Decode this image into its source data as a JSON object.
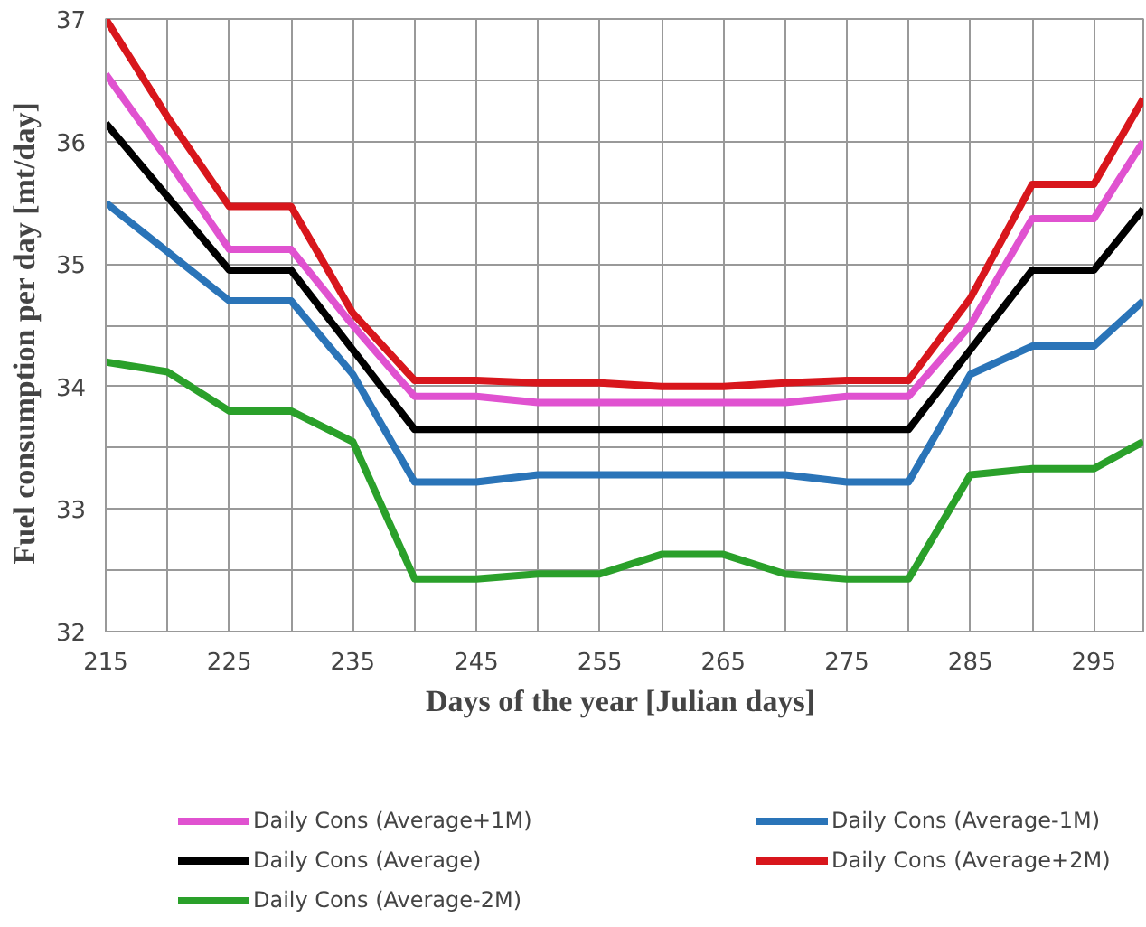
{
  "chart_data": {
    "type": "line",
    "xlabel": "Days of the year [Julian  days]",
    "ylabel": "Fuel consumption  per day  [mt/day]",
    "x": [
      215,
      220,
      225,
      230,
      235,
      240,
      245,
      250,
      255,
      260,
      265,
      270,
      275,
      280,
      285,
      290,
      295,
      299
    ],
    "series": [
      {
        "name": "Daily Cons (Average+1M)",
        "color": "#e052d0",
        "values": [
          36.55,
          35.85,
          35.12,
          35.12,
          34.5,
          33.92,
          33.92,
          33.87,
          33.87,
          33.87,
          33.87,
          33.87,
          33.92,
          33.92,
          34.5,
          35.37,
          35.37,
          36.0
        ]
      },
      {
        "name": "Daily Cons (Average-1M)",
        "color": "#2a74b8",
        "values": [
          35.5,
          35.1,
          34.7,
          34.7,
          34.1,
          33.22,
          33.22,
          33.28,
          33.28,
          33.28,
          33.28,
          33.28,
          33.22,
          33.22,
          34.1,
          34.33,
          34.33,
          34.7
        ]
      },
      {
        "name": "Daily Cons (Average)",
        "color": "#000000",
        "values": [
          36.15,
          35.55,
          34.95,
          34.95,
          34.3,
          33.65,
          33.65,
          33.65,
          33.65,
          33.65,
          33.65,
          33.65,
          33.65,
          33.65,
          34.3,
          34.95,
          34.95,
          35.45
        ]
      },
      {
        "name": "Daily Cons (Average+2M)",
        "color": "#d8161c",
        "values": [
          37.0,
          36.2,
          35.47,
          35.47,
          34.6,
          34.05,
          34.05,
          34.03,
          34.03,
          34.0,
          34.0,
          34.03,
          34.05,
          34.05,
          34.72,
          35.65,
          35.65,
          36.35
        ]
      },
      {
        "name": "Daily Cons (Average-2M)",
        "color": "#2aa02a",
        "values": [
          34.2,
          34.12,
          33.8,
          33.8,
          33.55,
          32.43,
          32.43,
          32.47,
          32.47,
          32.63,
          32.63,
          32.47,
          32.43,
          32.43,
          33.28,
          33.33,
          33.33,
          33.55
        ]
      }
    ],
    "xlim": [
      215,
      299
    ],
    "xticks": [
      215,
      {
        "value": 220,
        "label": null
      },
      225,
      {
        "value": 230,
        "label": null
      },
      235,
      {
        "value": 240,
        "label": null
      },
      245,
      {
        "value": 250,
        "label": null
      },
      255,
      {
        "value": 260,
        "label": null
      },
      265,
      {
        "value": 270,
        "label": null
      },
      275,
      {
        "value": 280,
        "label": null
      },
      285,
      {
        "value": 290,
        "label": null
      },
      295
    ],
    "ylim": [
      32,
      37
    ],
    "yticks": [
      32,
      {
        "value": 32.5,
        "label": null
      },
      33,
      {
        "value": 33.5,
        "label": null
      },
      34,
      {
        "value": 34.5,
        "label": null
      },
      35,
      {
        "value": 35.5,
        "label": null
      },
      36,
      {
        "value": 36.5,
        "label": null
      },
      37
    ],
    "grid": true,
    "legend": "bottom",
    "line_style": "solid"
  }
}
